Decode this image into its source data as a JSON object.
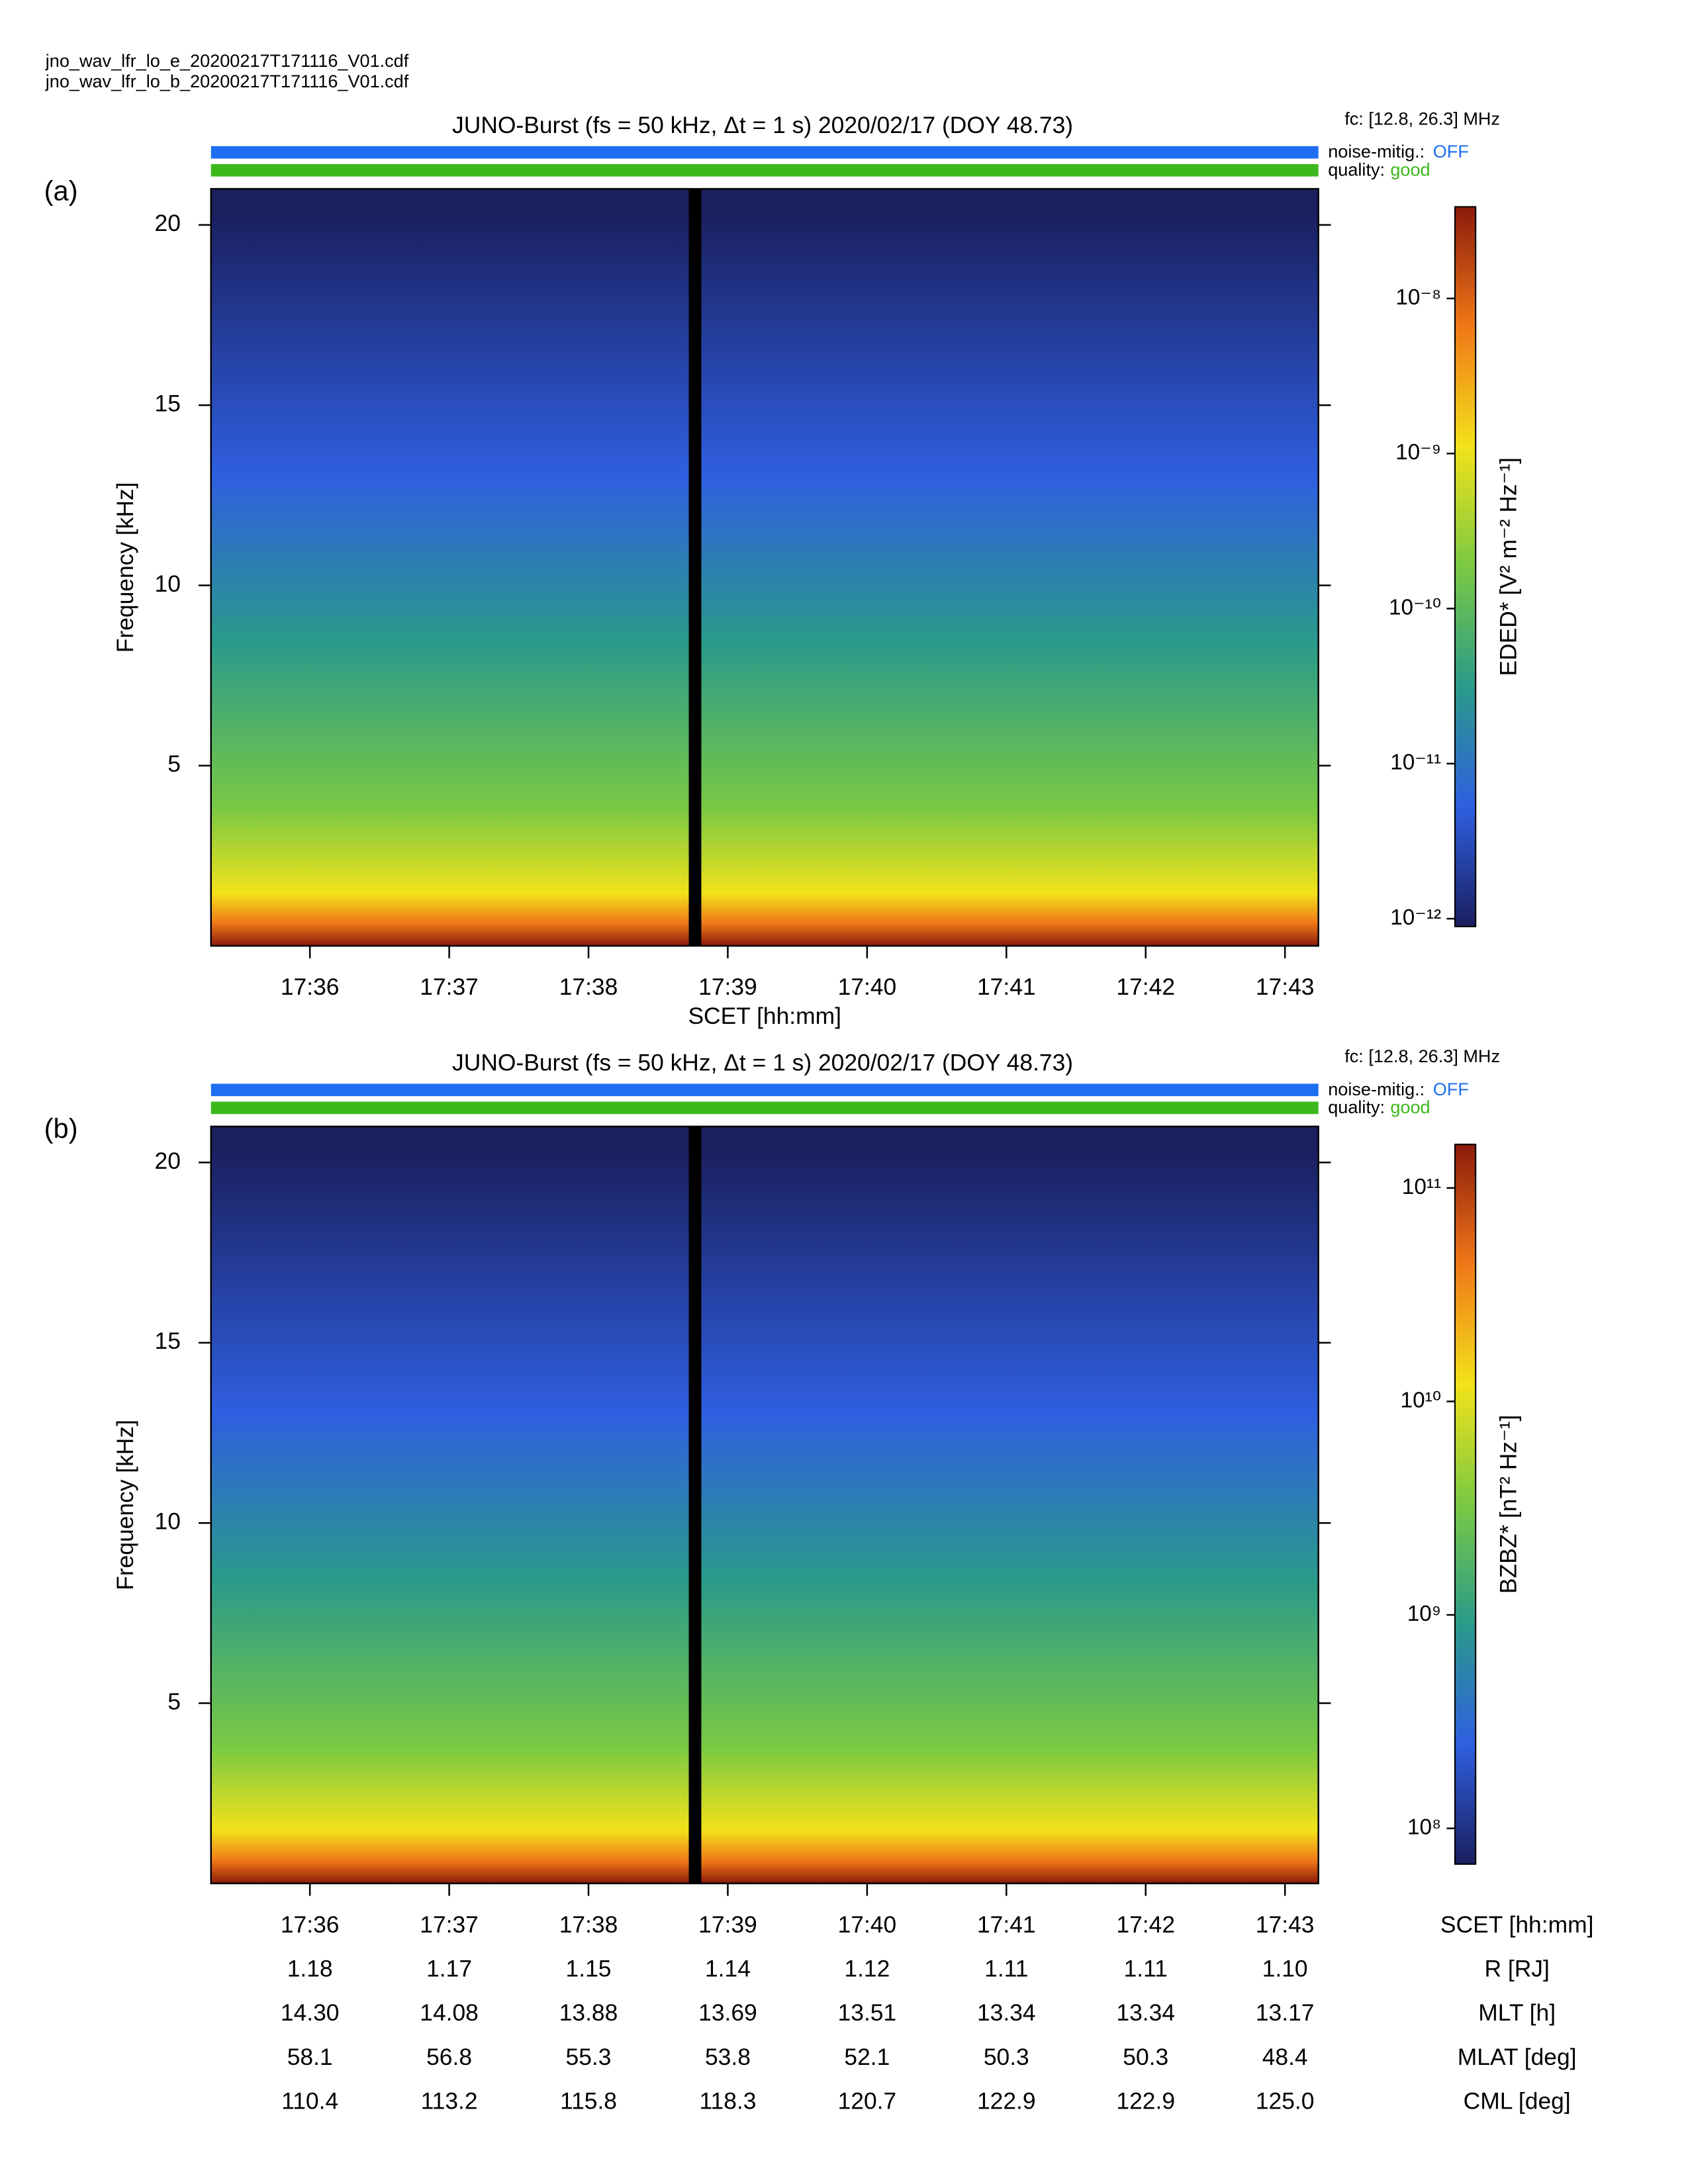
{
  "files": [
    "jno_wav_lfr_lo_e_20200217T171116_V01.cdf",
    "jno_wav_lfr_lo_b_20200217T171116_V01.cdf"
  ],
  "chart_data": [
    {
      "type": "spectrogram",
      "panel_label": "(a)",
      "title": "JUNO-Burst (fs = 50 kHz, Δt = 1 s)  2020/02/17 (DOY 48.73)",
      "fc_label": "fc: [12.8, 26.3] MHz",
      "noise_mitig_label": "noise-mitig.:",
      "noise_mitig": "OFF",
      "noise_mitig_color": "#1e6ef0",
      "quality_label": "quality:",
      "quality": "good",
      "quality_color": "#3cb81c",
      "ylabel": "Frequency [kHz]",
      "ylim": [
        0,
        21
      ],
      "yticks": [
        5,
        10,
        15,
        20
      ],
      "xlabel": "SCET [hh:mm]",
      "xlim": [
        1055.29,
        1063.24
      ],
      "xticks": [
        {
          "value": 1056,
          "label": "17:36"
        },
        {
          "value": 1057,
          "label": "17:37"
        },
        {
          "value": 1058,
          "label": "17:38"
        },
        {
          "value": 1059,
          "label": "17:39"
        },
        {
          "value": 1060,
          "label": "17:40"
        },
        {
          "value": 1061,
          "label": "17:41"
        },
        {
          "value": 1062,
          "label": "17:42"
        },
        {
          "value": 1063,
          "label": "17:43"
        }
      ],
      "data_gap": [
        1058.72,
        1058.81
      ],
      "colorbar_label": "EDED* [V² m⁻² Hz⁻¹]",
      "log_colorbar": true,
      "clim": [
        8.9e-13,
        3.9e-08
      ],
      "cticks": [
        {
          "value": 1e-12,
          "label": "10⁻¹²"
        },
        {
          "value": 1e-11,
          "label": "10⁻¹¹"
        },
        {
          "value": 1e-10,
          "label": "10⁻¹⁰"
        },
        {
          "value": 1e-09,
          "label": "10⁻⁹"
        },
        {
          "value": 1e-08,
          "label": "10⁻⁸"
        }
      ],
      "colormap": [
        "#1a1f5e",
        "#2f5fe0",
        "#2a9a8a",
        "#7ac943",
        "#f2e21a",
        "#f07818",
        "#8b1a0a"
      ]
    },
    {
      "type": "spectrogram",
      "panel_label": "(b)",
      "title": "JUNO-Burst (fs = 50 kHz, Δt = 1 s)  2020/02/17 (DOY 48.73)",
      "fc_label": "fc: [12.8, 26.3] MHz",
      "noise_mitig_label": "noise-mitig.:",
      "noise_mitig": "OFF",
      "noise_mitig_color": "#1e6ef0",
      "quality_label": "quality:",
      "quality": "good",
      "quality_color": "#3cb81c",
      "ylabel": "Frequency [kHz]",
      "ylim": [
        0,
        21
      ],
      "yticks": [
        5,
        10,
        15,
        20
      ],
      "xlabel": "SCET [hh:mm]",
      "xlim": [
        1055.29,
        1063.24
      ],
      "xticks": [
        {
          "value": 1056,
          "label": "17:36"
        },
        {
          "value": 1057,
          "label": "17:37"
        },
        {
          "value": 1058,
          "label": "17:38"
        },
        {
          "value": 1059,
          "label": "17:39"
        },
        {
          "value": 1060,
          "label": "17:40"
        },
        {
          "value": 1061,
          "label": "17:41"
        },
        {
          "value": 1062,
          "label": "17:42"
        },
        {
          "value": 1063,
          "label": "17:43"
        }
      ],
      "data_gap": [
        1058.72,
        1058.81
      ],
      "colorbar_label": "BZBZ* [nT² Hz⁻¹]",
      "log_colorbar": true,
      "clim": [
        68000000.0,
        160000000000.0
      ],
      "cticks": [
        {
          "value": 100000000.0,
          "label": "10⁸"
        },
        {
          "value": 1000000000.0,
          "label": "10⁹"
        },
        {
          "value": 10000000000.0,
          "label": "10¹⁰"
        },
        {
          "value": 100000000000.0,
          "label": "10¹¹"
        }
      ],
      "colormap": [
        "#1a1f5e",
        "#2f5fe0",
        "#2a9a8a",
        "#7ac943",
        "#f2e21a",
        "#f07818",
        "#8b1a0a"
      ],
      "ephemeris_labels": [
        "R [RJ]",
        "MLT [h]",
        "MLAT [deg]",
        "CML [deg]"
      ],
      "ephemeris_values": [
        [
          "1.18",
          "1.17",
          "1.15",
          "1.14",
          "1.12",
          "1.11",
          "1.11",
          "1.10"
        ],
        [
          "14.30",
          "14.08",
          "13.88",
          "13.69",
          "13.51",
          "13.34",
          "13.34",
          "13.17"
        ],
        [
          "58.1",
          "56.8",
          "55.3",
          "53.8",
          "52.1",
          "50.3",
          "50.3",
          "48.4"
        ],
        [
          "110.4",
          "113.2",
          "115.8",
          "118.3",
          "120.7",
          "122.9",
          "122.9",
          "125.0"
        ]
      ]
    }
  ]
}
